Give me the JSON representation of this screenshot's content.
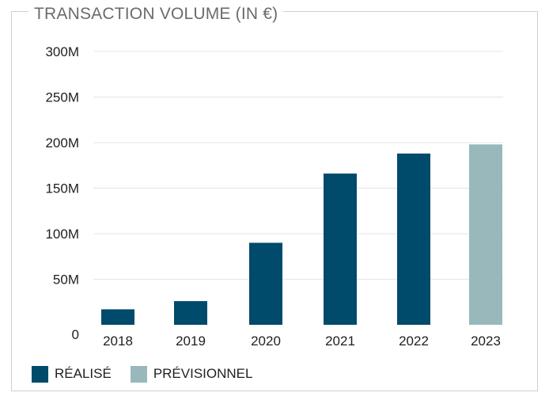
{
  "chart_data": {
    "type": "bar",
    "title": "TRANSACTION VOLUME (IN €)",
    "xlabel": "",
    "ylabel": "",
    "categories": [
      "2018",
      "2019",
      "2020",
      "2021",
      "2022",
      "2023"
    ],
    "series": [
      {
        "name": "RÉALISÉ",
        "color": "#004a6b",
        "values": [
          17,
          26,
          90,
          166,
          188,
          null
        ]
      },
      {
        "name": "PRÉVISIONNEL",
        "color": "#98b8bc",
        "values": [
          null,
          null,
          null,
          null,
          null,
          198
        ]
      }
    ],
    "ylim": [
      0,
      300
    ],
    "yticks": [
      0,
      50,
      100,
      150,
      200,
      250,
      300
    ],
    "ytick_labels": [
      "0",
      "50M",
      "100M",
      "150M",
      "200M",
      "250M",
      "300M"
    ],
    "grid": true,
    "legend_position": "bottom-left"
  },
  "colors": {
    "realise": "#004a6b",
    "previsionnel": "#98b8bc",
    "grid": "#e4e4e4",
    "frame": "#cfcfcf"
  }
}
